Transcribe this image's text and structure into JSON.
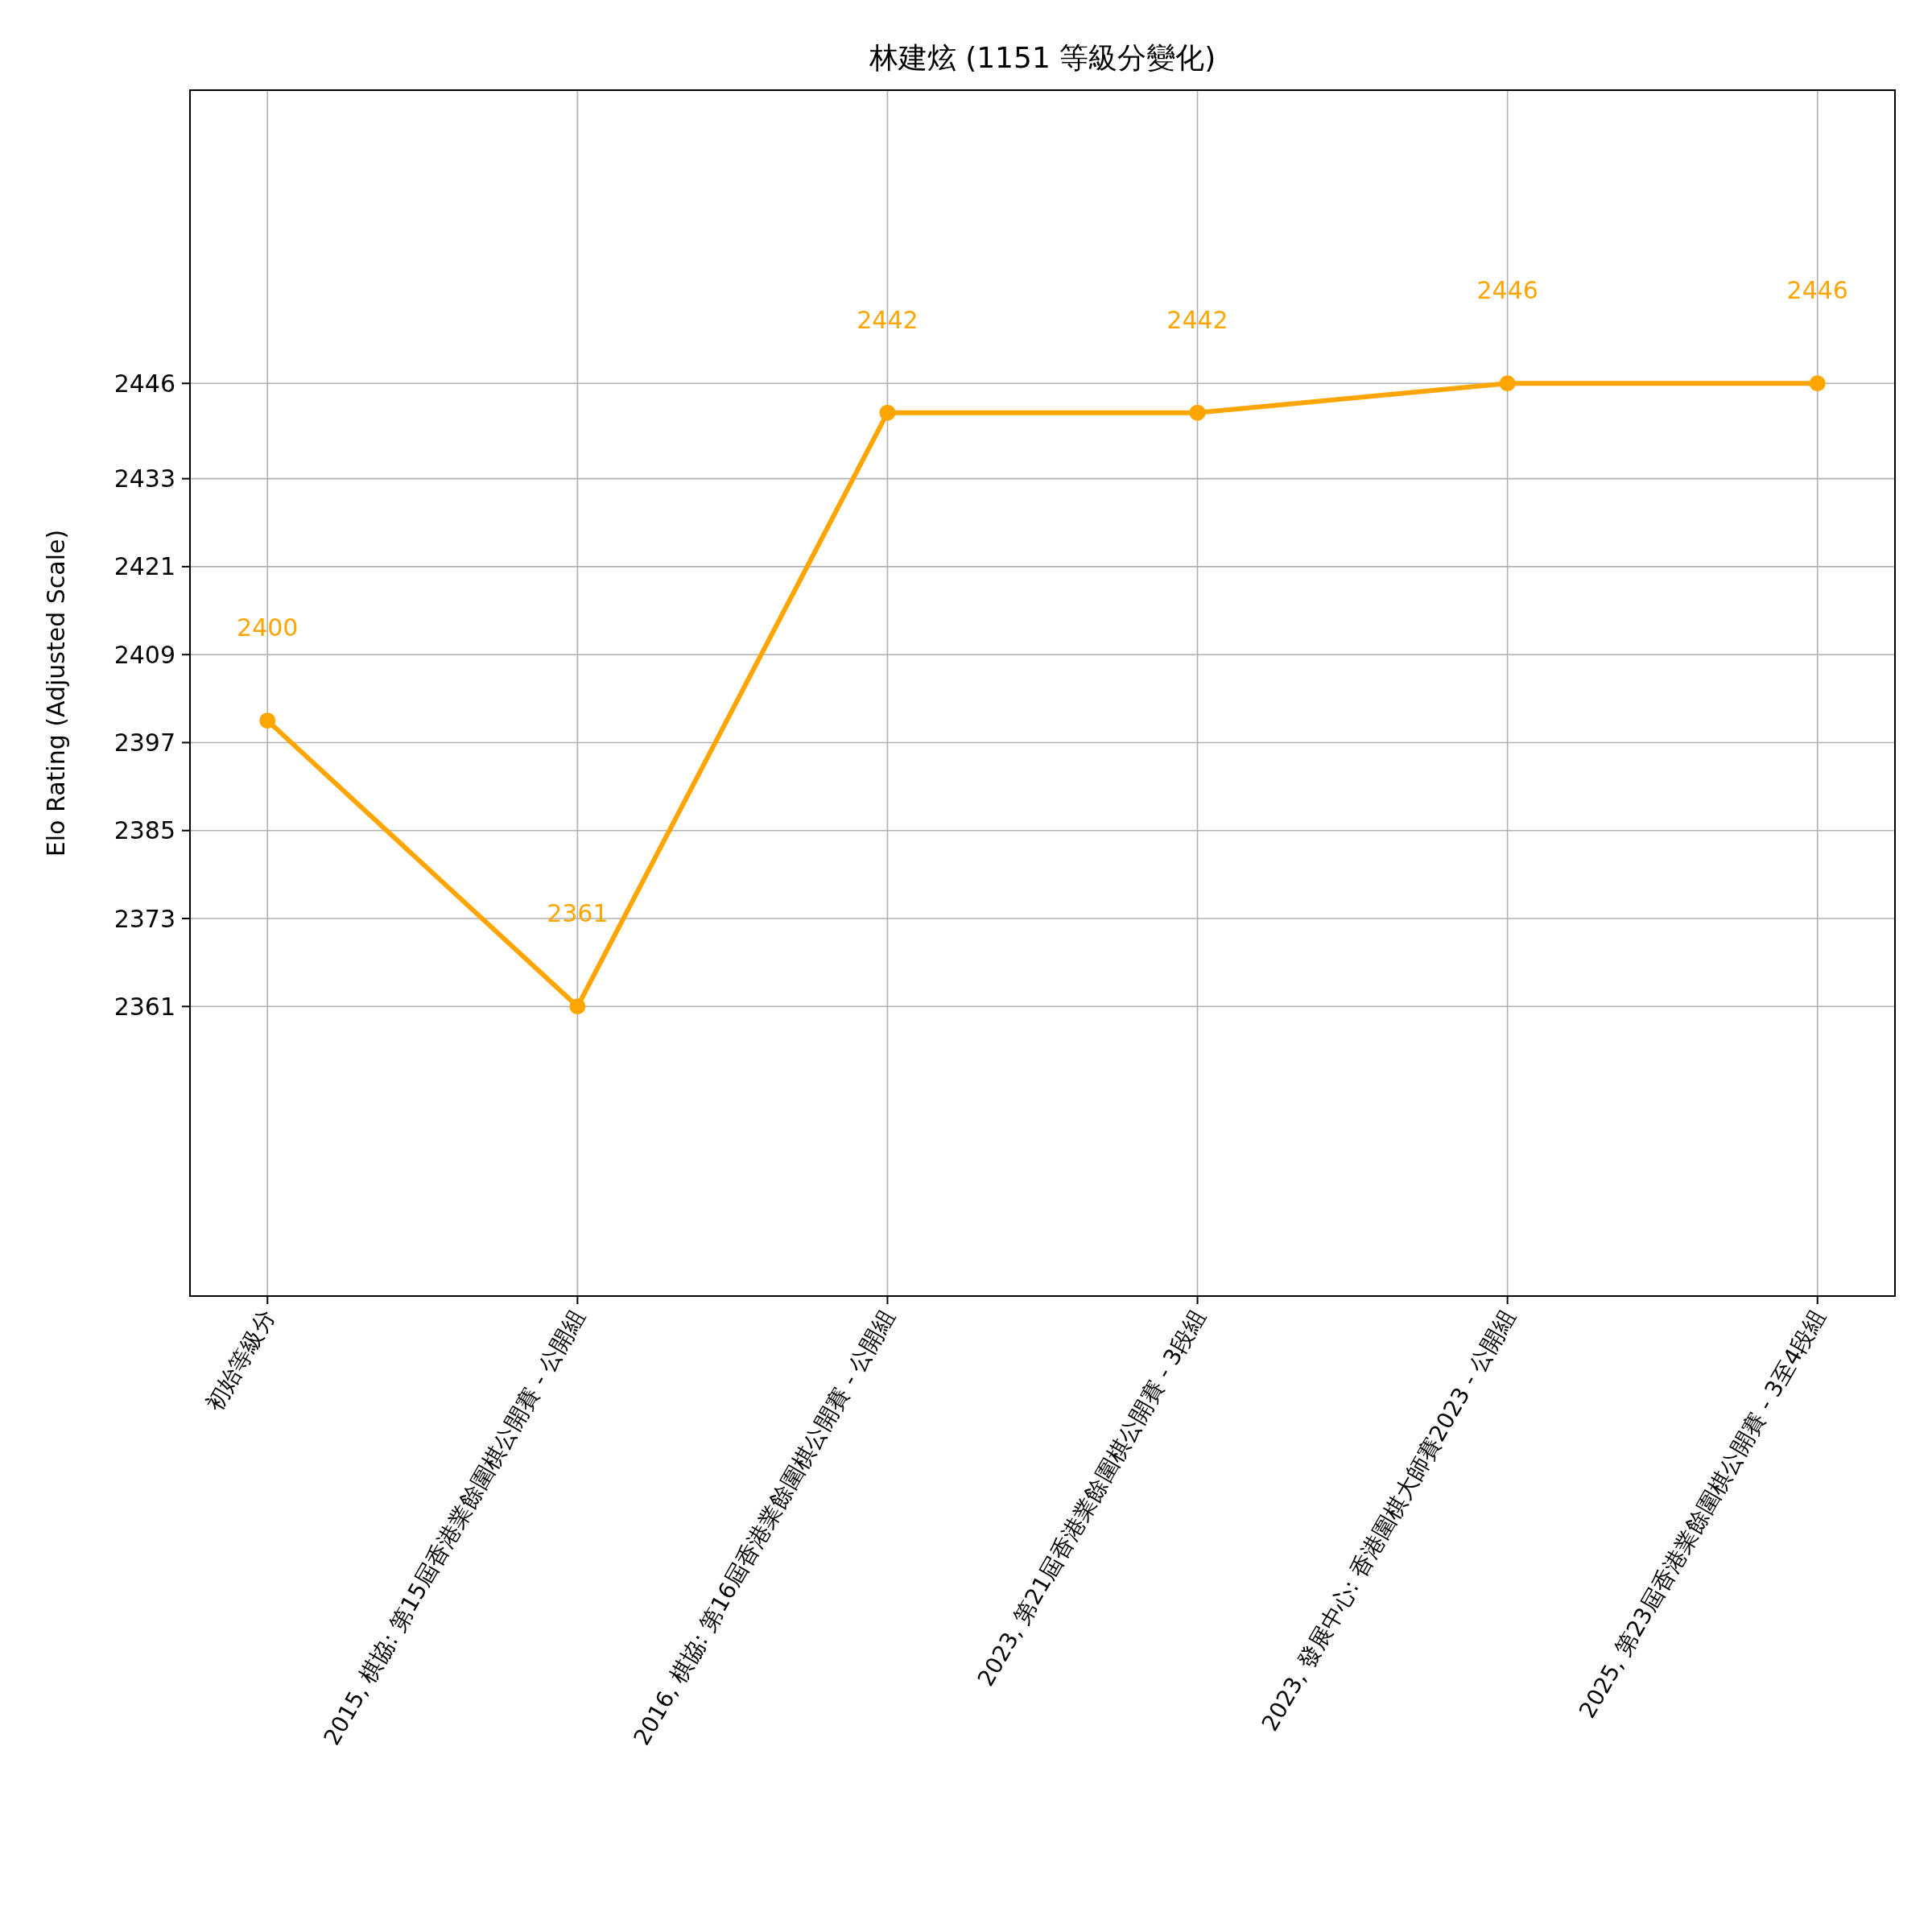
{
  "chart_data": {
    "type": "line",
    "title": "林建炫 (1151 等級分變化)",
    "ylabel": "Elo Rating (Adjusted Scale)",
    "categories": [
      "初始等級分",
      "2015, 棋協: 第15屆香港業餘圍棋公開賽 - 公開組",
      "2016, 棋協: 第16屆香港業餘圍棋公開賽 - 公開組",
      "2023, 第21屆香港業餘圍棋公開賽 - 3段組",
      "2023, 發展中心: 香港圍棋大師賽2023 - 公開組",
      "2025, 第23屆香港業餘圍棋公開賽 - 3至4段組"
    ],
    "series": [
      {
        "color": "#ffa500",
        "values": [
          2400,
          2361,
          2442,
          2442,
          2446,
          2446
        ]
      }
    ],
    "ylim": [
      2321.5,
      2486
    ],
    "yticks": [
      2361,
      2373,
      2385,
      2397,
      2409,
      2421,
      2433,
      2446
    ],
    "grid": true,
    "marker": "circle",
    "line_style": "solid",
    "data_labels": true
  }
}
